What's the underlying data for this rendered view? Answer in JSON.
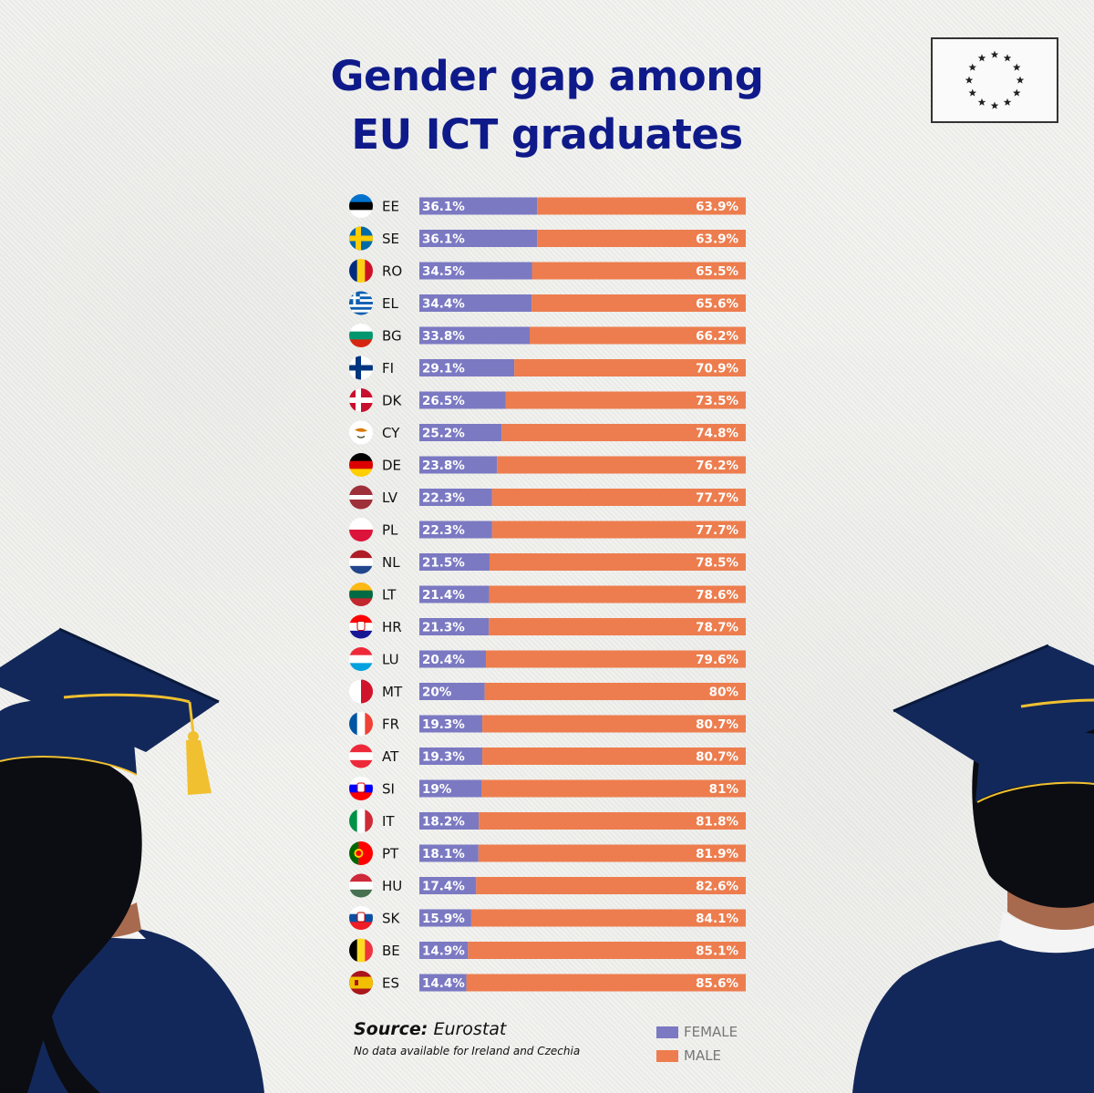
{
  "title": {
    "line1": "Gender gap among",
    "line2": "EU ICT graduates"
  },
  "chart_data": {
    "type": "bar",
    "stacked": true,
    "orientation": "horizontal",
    "categories": [
      "EE",
      "SE",
      "RO",
      "EL",
      "BG",
      "FI",
      "DK",
      "CY",
      "DE",
      "LV",
      "PL",
      "NL",
      "LT",
      "HR",
      "LU",
      "MT",
      "FR",
      "AT",
      "SI",
      "IT",
      "PT",
      "HU",
      "SK",
      "BE",
      "ES"
    ],
    "series": [
      {
        "name": "FEMALE",
        "values": [
          36.1,
          36.1,
          34.5,
          34.4,
          33.8,
          29.1,
          26.5,
          25.2,
          23.8,
          22.3,
          22.3,
          21.5,
          21.4,
          21.3,
          20.4,
          20,
          19.3,
          19.3,
          19,
          18.2,
          18.1,
          17.4,
          15.9,
          14.9,
          14.4
        ],
        "labels": [
          "36.1%",
          "36.1%",
          "34.5%",
          "34.4%",
          "33.8%",
          "29.1%",
          "26.5%",
          "25.2%",
          "23.8%",
          "22.3%",
          "22.3%",
          "21.5%",
          "21.4%",
          "21.3%",
          "20.4%",
          "20%",
          "19.3%",
          "19.3%",
          "19%",
          "18.2%",
          "18.1%",
          "17.4%",
          "15.9%",
          "14.9%",
          "14.4%"
        ]
      },
      {
        "name": "MALE",
        "values": [
          63.9,
          63.9,
          65.5,
          65.6,
          66.2,
          70.9,
          73.5,
          74.8,
          76.2,
          77.7,
          77.7,
          78.5,
          78.6,
          78.7,
          79.6,
          80,
          80.7,
          80.7,
          81,
          81.8,
          81.9,
          82.6,
          84.1,
          85.1,
          85.6
        ],
        "labels": [
          "63.9%",
          "63.9%",
          "65.5%",
          "65.6%",
          "66.2%",
          "70.9%",
          "73.5%",
          "74.8%",
          "76.2%",
          "77.7%",
          "77.7%",
          "78.5%",
          "78.6%",
          "78.7%",
          "79.6%",
          "80%",
          "80.7%",
          "80.7%",
          "81%",
          "81.8%",
          "81.9%",
          "82.6%",
          "84.1%",
          "85.1%",
          "85.6%"
        ]
      }
    ],
    "xlim": [
      0,
      100
    ],
    "legend_placement": "bottom-right",
    "grid": false
  },
  "colors": {
    "female": "#7b79c2",
    "male": "#ed7d4e",
    "title": "#0f1a8a",
    "navy": "#13285a",
    "gold": "#f0c030"
  },
  "flags": {
    "EE": {
      "type": "h",
      "colors": [
        "#0072ce",
        "#000000",
        "#ffffff"
      ]
    },
    "SE": {
      "type": "nordic",
      "colors": [
        "#006aa7",
        "#fecc00"
      ]
    },
    "RO": {
      "type": "v",
      "colors": [
        "#002b7f",
        "#fcd116",
        "#ce1126"
      ]
    },
    "EL": {
      "type": "greece",
      "colors": [
        "#0d5eaf",
        "#ffffff"
      ]
    },
    "BG": {
      "type": "h",
      "colors": [
        "#ffffff",
        "#00966e",
        "#d62612"
      ]
    },
    "FI": {
      "type": "nordic",
      "colors": [
        "#ffffff",
        "#003580"
      ]
    },
    "DK": {
      "type": "nordic",
      "colors": [
        "#c8102e",
        "#ffffff"
      ]
    },
    "CY": {
      "type": "cyprus",
      "colors": [
        "#ffffff",
        "#d57800",
        "#4e5b31"
      ]
    },
    "DE": {
      "type": "h",
      "colors": [
        "#000000",
        "#dd0000",
        "#ffce00"
      ]
    },
    "LV": {
      "type": "latvia",
      "colors": [
        "#9e3039",
        "#ffffff"
      ]
    },
    "PL": {
      "type": "h",
      "colors": [
        "#ffffff",
        "#dc143c"
      ]
    },
    "NL": {
      "type": "h",
      "colors": [
        "#ae1c28",
        "#ffffff",
        "#21468b"
      ]
    },
    "LT": {
      "type": "h",
      "colors": [
        "#fdb913",
        "#006a44",
        "#c1272d"
      ]
    },
    "HR": {
      "type": "h",
      "colors": [
        "#ff0000",
        "#ffffff",
        "#171796"
      ],
      "emblem": true
    },
    "LU": {
      "type": "h",
      "colors": [
        "#ed2939",
        "#ffffff",
        "#00a1de"
      ]
    },
    "MT": {
      "type": "v",
      "colors": [
        "#ffffff",
        "#cf142b"
      ]
    },
    "FR": {
      "type": "v",
      "colors": [
        "#0055a4",
        "#ffffff",
        "#ef4135"
      ]
    },
    "AT": {
      "type": "h",
      "colors": [
        "#ed2939",
        "#ffffff",
        "#ed2939"
      ]
    },
    "SI": {
      "type": "h",
      "colors": [
        "#ffffff",
        "#0000ff",
        "#ff0000"
      ],
      "emblem": true
    },
    "IT": {
      "type": "v",
      "colors": [
        "#009246",
        "#ffffff",
        "#ce2b37"
      ]
    },
    "PT": {
      "type": "portugal",
      "colors": [
        "#006600",
        "#ff0000",
        "#ffcc00"
      ]
    },
    "HU": {
      "type": "h",
      "colors": [
        "#ce2939",
        "#ffffff",
        "#477050"
      ]
    },
    "SK": {
      "type": "h",
      "colors": [
        "#ffffff",
        "#0b4ea2",
        "#ee1c25"
      ],
      "emblem": true
    },
    "BE": {
      "type": "v",
      "colors": [
        "#000000",
        "#fdda24",
        "#ef3340"
      ]
    },
    "ES": {
      "type": "spain",
      "colors": [
        "#aa151b",
        "#f1bf00"
      ]
    }
  },
  "source": {
    "label": "Source:",
    "name": "Eurostat",
    "note": "No data available for Ireland and Czechia"
  },
  "legend": [
    {
      "label": "FEMALE",
      "color": "#7b79c2"
    },
    {
      "label": "MALE",
      "color": "#ed7d4e"
    }
  ]
}
